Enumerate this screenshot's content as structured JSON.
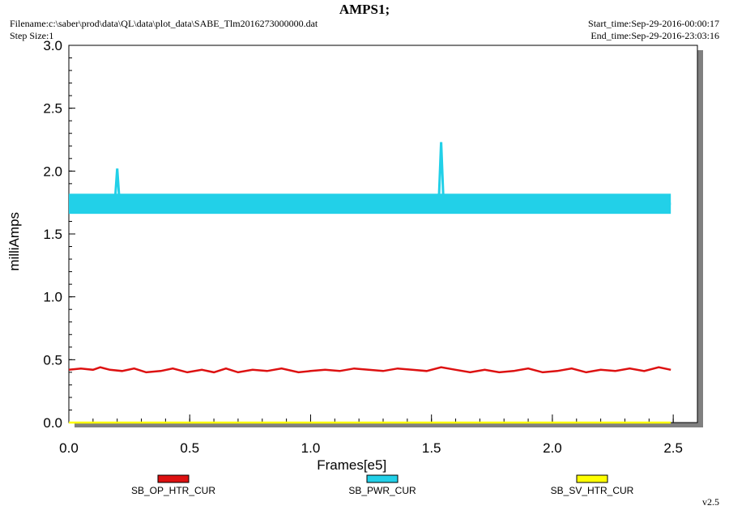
{
  "header": {
    "title": "AMPS1;",
    "filename": "Filename:c:\\saber\\prod\\data\\QL\\data\\plot_data\\SABE_Tlm2016273000000.dat",
    "step_size": "Step Size:1",
    "start_time": "Start_time:Sep-29-2016-00:00:17",
    "end_time": "End_time:Sep-29-2016-23:03:16"
  },
  "version": "v2.5",
  "chart_data": {
    "type": "line",
    "title": "AMPS1;",
    "xlabel": "Frames[e5]",
    "ylabel": "milliAmps",
    "xlim": [
      0.0,
      2.6
    ],
    "ylim": [
      0.0,
      3.0
    ],
    "x_ticks": [
      "0.0",
      "0.5",
      "1.0",
      "1.5",
      "2.0",
      "2.5"
    ],
    "y_ticks": [
      "0.0",
      "0.5",
      "1.0",
      "1.5",
      "2.0",
      "2.5",
      "3.0"
    ],
    "grid": false,
    "legend_position": "bottom",
    "series": [
      {
        "name": "SB_OP_HTR_CUR",
        "color": "#dd1111",
        "x": [
          0.0,
          0.05,
          0.1,
          0.13,
          0.17,
          0.22,
          0.27,
          0.32,
          0.38,
          0.43,
          0.49,
          0.55,
          0.6,
          0.65,
          0.7,
          0.76,
          0.82,
          0.88,
          0.95,
          1.0,
          1.06,
          1.12,
          1.18,
          1.24,
          1.3,
          1.36,
          1.42,
          1.48,
          1.54,
          1.6,
          1.66,
          1.72,
          1.78,
          1.84,
          1.9,
          1.96,
          2.02,
          2.08,
          2.14,
          2.2,
          2.26,
          2.32,
          2.38,
          2.44,
          2.49
        ],
        "values": [
          0.42,
          0.43,
          0.42,
          0.44,
          0.42,
          0.41,
          0.43,
          0.4,
          0.41,
          0.43,
          0.4,
          0.42,
          0.4,
          0.43,
          0.4,
          0.42,
          0.41,
          0.43,
          0.4,
          0.41,
          0.42,
          0.41,
          0.43,
          0.42,
          0.41,
          0.43,
          0.42,
          0.41,
          0.44,
          0.42,
          0.4,
          0.42,
          0.4,
          0.41,
          0.43,
          0.4,
          0.41,
          0.43,
          0.4,
          0.42,
          0.41,
          0.43,
          0.41,
          0.44,
          0.42
        ]
      },
      {
        "name": "SB_PWR_CUR",
        "color": "#22d0e8",
        "band": [
          1.66,
          1.82
        ],
        "x": [
          0.0,
          0.19,
          0.2,
          0.21,
          1.53,
          1.54,
          1.55,
          2.49
        ],
        "values": [
          1.74,
          1.74,
          2.02,
          1.74,
          1.74,
          2.23,
          1.74,
          1.74
        ]
      },
      {
        "name": "SB_SV_HTR_CUR",
        "color": "#ffff00",
        "x": [
          0.0,
          2.49
        ],
        "values": [
          0.0,
          0.0
        ]
      }
    ]
  }
}
